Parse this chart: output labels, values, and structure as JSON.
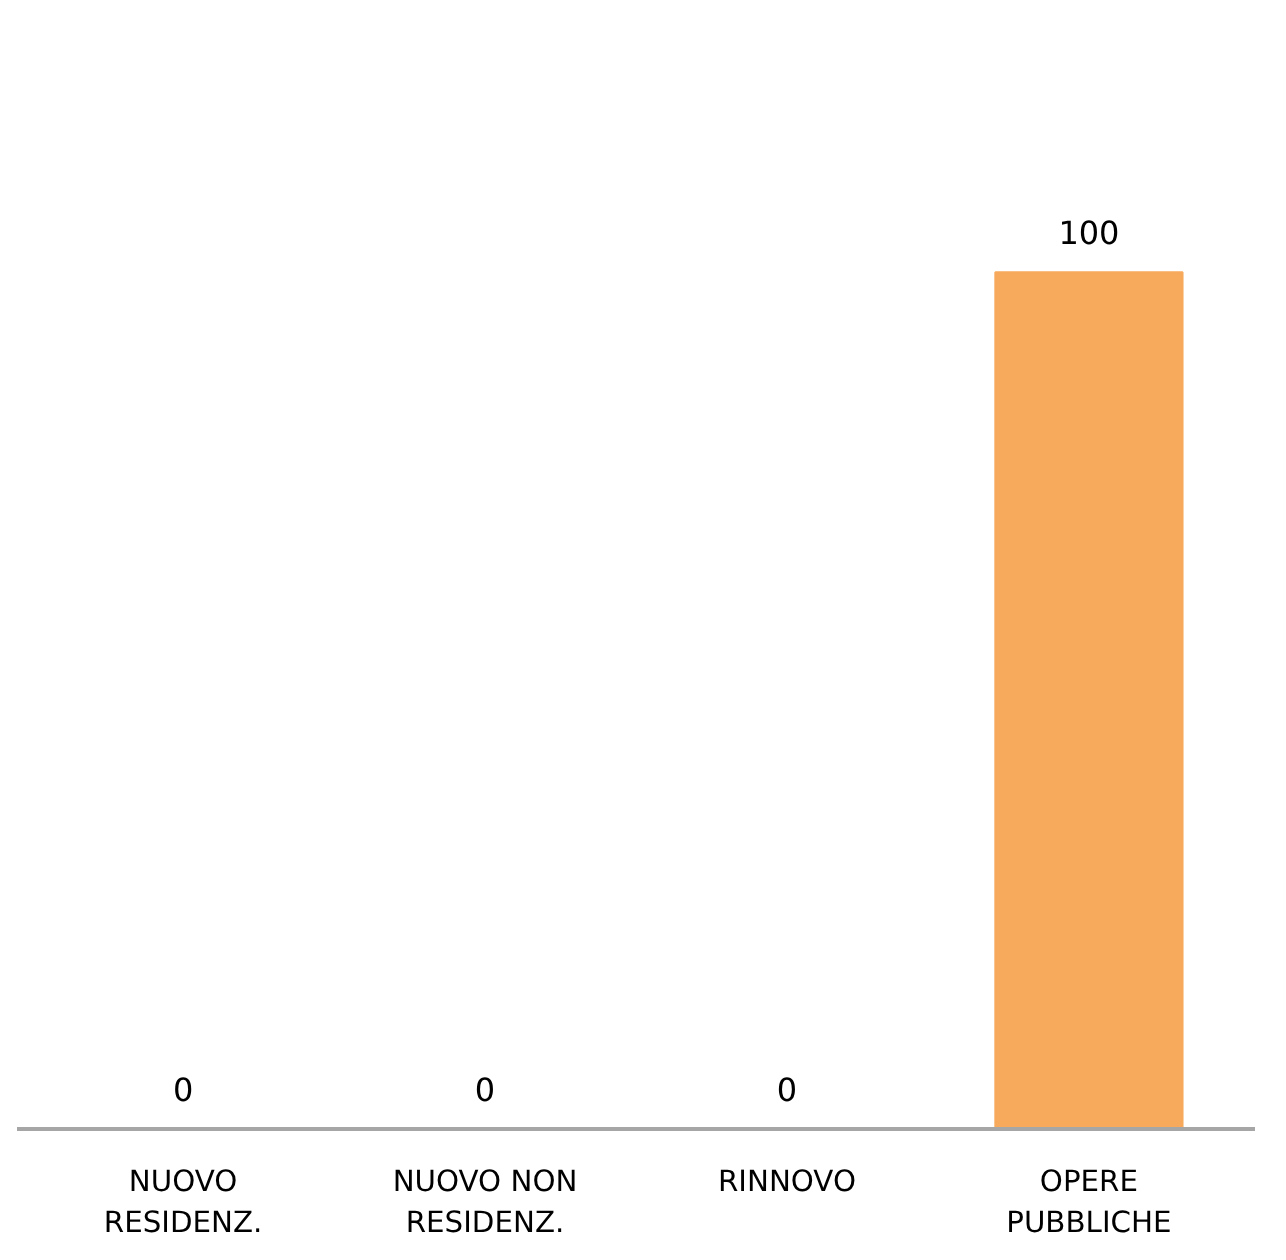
{
  "chart_data": {
    "type": "bar",
    "categories": [
      "NUOVO\nRESIDENZ.",
      "NUOVO NON\nRESIDENZ.",
      "RINNOVO",
      "OPERE\nPUBBLICHE"
    ],
    "values": [
      0,
      0,
      0,
      100
    ],
    "color": "#f7a95c",
    "data_labels": true,
    "grid": false
  }
}
